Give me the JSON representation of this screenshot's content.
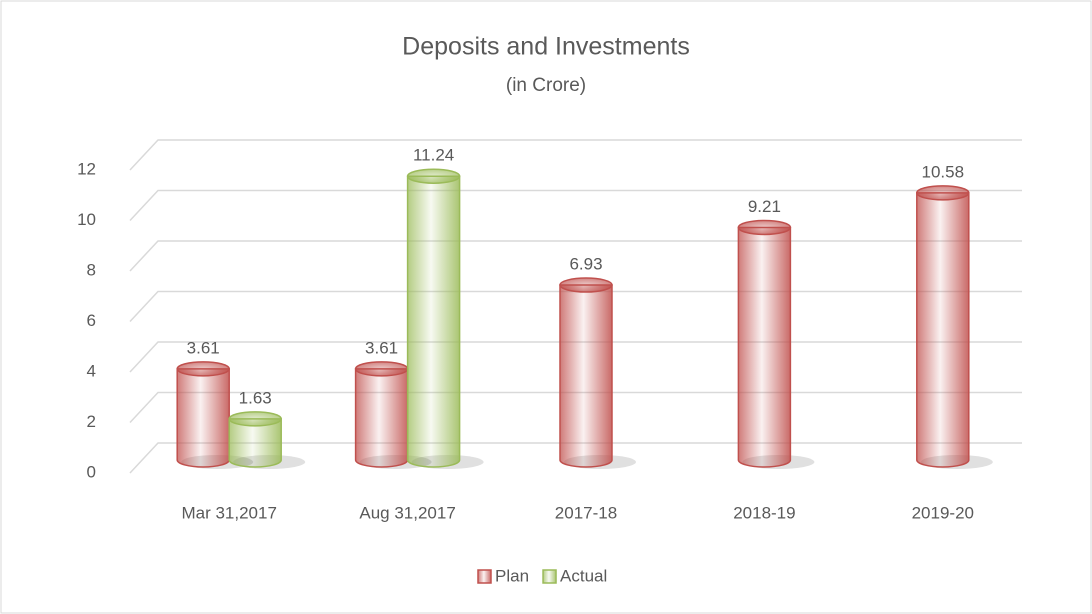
{
  "chart_data": {
    "type": "bar3d",
    "title": "Deposits and Investments",
    "subtitle": "(in Crore)",
    "categories": [
      "Mar 31,2017",
      "Aug 31,2017",
      "2017-18",
      "2018-19",
      "2019-20"
    ],
    "series": [
      {
        "name": "Plan",
        "color": "#c0504d",
        "values": [
          3.61,
          3.61,
          6.93,
          9.21,
          10.58
        ]
      },
      {
        "name": "Actual",
        "color": "#9bbb59",
        "values": [
          1.63,
          11.24,
          null,
          null,
          null
        ]
      }
    ],
    "ylim": [
      0,
      12
    ],
    "yticks": [
      0,
      2,
      4,
      6,
      8,
      10,
      12
    ],
    "grid": true,
    "legend": "bottom"
  }
}
